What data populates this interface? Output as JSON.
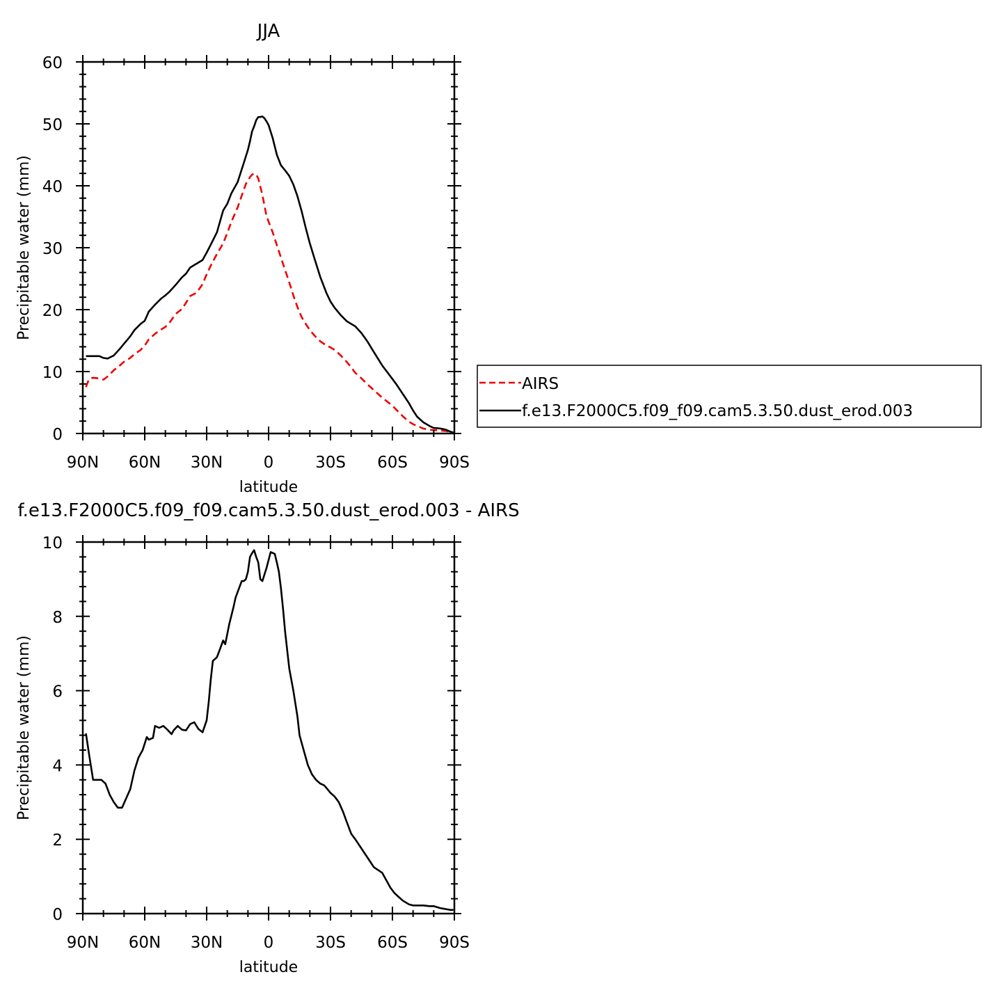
{
  "colors": {
    "airs": "#ee0000",
    "model": "#000000",
    "axes": "#000000",
    "background": "#ffffff"
  },
  "chart_data": [
    {
      "type": "line",
      "title": "JJA",
      "xlabel": "latitude",
      "ylabel": "Precipitable water (mm)",
      "xlim": [
        90,
        -90
      ],
      "ylim": [
        0,
        60
      ],
      "xticks": [
        {
          "value": 90,
          "label": "90N"
        },
        {
          "value": 60,
          "label": "60N"
        },
        {
          "value": 30,
          "label": "30N"
        },
        {
          "value": 0,
          "label": "0"
        },
        {
          "value": -30,
          "label": "30S"
        },
        {
          "value": -60,
          "label": "60S"
        },
        {
          "value": -90,
          "label": "90S"
        }
      ],
      "yticks": [
        {
          "value": 0,
          "label": "0"
        },
        {
          "value": 10,
          "label": "10"
        },
        {
          "value": 20,
          "label": "20"
        },
        {
          "value": 30,
          "label": "30"
        },
        {
          "value": 40,
          "label": "40"
        },
        {
          "value": 50,
          "label": "50"
        },
        {
          "value": 60,
          "label": "60"
        }
      ],
      "legend": {
        "position": "right",
        "entries": [
          {
            "label": "AIRS",
            "style": "dashed",
            "color": "#ee0000"
          },
          {
            "label": "f.e13.F2000C5.f09_f09.cam5.3.50.dust_erod.003",
            "style": "solid",
            "color": "#000000"
          }
        ]
      },
      "series": [
        {
          "name": "AIRS",
          "style": "dashed",
          "color": "#ee0000",
          "x": [
            88.5,
            87,
            85,
            82,
            80,
            78,
            75,
            72,
            70,
            67,
            65,
            62,
            60,
            58,
            55,
            52,
            50,
            48,
            45,
            42,
            40,
            38,
            35,
            32,
            30,
            28,
            25,
            22,
            20,
            18,
            15,
            13,
            11,
            9,
            8,
            7,
            6,
            5,
            4,
            3,
            2,
            1,
            0,
            -2,
            -4,
            -6,
            -8,
            -10,
            -12,
            -14,
            -16,
            -18,
            -20,
            -22,
            -25,
            -28,
            -30,
            -32,
            -35,
            -38,
            -40,
            -42,
            -45,
            -48,
            -50,
            -55,
            -60,
            -62,
            -65,
            -68,
            -70,
            -72,
            -75,
            -78,
            -80,
            -82,
            -84,
            -86,
            -88,
            -89.5
          ],
          "y": [
            7.5,
            8.8,
            9.0,
            8.9,
            8.7,
            9.2,
            10.2,
            11.0,
            11.6,
            12.2,
            12.8,
            13.5,
            14.2,
            15.2,
            16.1,
            16.8,
            17.2,
            17.9,
            19.3,
            20.1,
            21.1,
            22.2,
            22.7,
            24.1,
            25.7,
            27.1,
            29.0,
            30.7,
            32.4,
            34.2,
            36.5,
            38.4,
            40.3,
            41.4,
            41.8,
            42.0,
            41.8,
            41.2,
            39.9,
            38.5,
            36.8,
            35.1,
            34.2,
            32.5,
            30.4,
            28.4,
            26.4,
            24.4,
            22.3,
            20.4,
            18.8,
            17.7,
            16.7,
            15.9,
            14.9,
            14.2,
            13.9,
            13.5,
            12.6,
            11.5,
            10.7,
            9.8,
            8.9,
            7.9,
            7.3,
            5.8,
            4.5,
            3.8,
            2.8,
            1.9,
            1.5,
            1.2,
            0.8,
            0.6,
            0.55,
            0.5,
            0.45,
            0.4,
            0.2,
            0.1
          ]
        },
        {
          "name": "f.e13.F2000C5.f09_f09.cam5.3.50.dust_erod.003",
          "style": "solid",
          "color": "#000000",
          "x": [
            88.5,
            85,
            82,
            80,
            78,
            75,
            72,
            70,
            67,
            65,
            62,
            60,
            58,
            55,
            52,
            50,
            48,
            45,
            42,
            40,
            38,
            35,
            32,
            30,
            28,
            25,
            22,
            20,
            18,
            15,
            12,
            10,
            9,
            8,
            7,
            6,
            5,
            4,
            3,
            2,
            1,
            0,
            -2,
            -4,
            -6,
            -8,
            -10,
            -12,
            -14,
            -16,
            -18,
            -20,
            -22,
            -25,
            -28,
            -30,
            -32,
            -35,
            -38,
            -40,
            -42,
            -45,
            -48,
            -50,
            -55,
            -60,
            -62,
            -65,
            -68,
            -70,
            -72,
            -75,
            -78,
            -80,
            -82,
            -84,
            -86,
            -88,
            -89.5
          ],
          "y": [
            12.5,
            12.5,
            12.5,
            12.2,
            12.1,
            12.6,
            13.7,
            14.5,
            15.7,
            16.7,
            17.7,
            18.2,
            19.7,
            20.8,
            21.8,
            22.3,
            22.9,
            24.0,
            25.2,
            25.8,
            26.8,
            27.4,
            28.0,
            29.2,
            30.5,
            32.5,
            36.0,
            37.1,
            38.8,
            40.6,
            43.7,
            45.8,
            47.2,
            48.8,
            49.6,
            50.6,
            51.1,
            51.1,
            51.2,
            50.9,
            50.4,
            49.8,
            47.7,
            45.0,
            43.3,
            42.5,
            41.6,
            40.2,
            38.3,
            35.9,
            33.2,
            30.7,
            28.5,
            25.3,
            22.7,
            21.3,
            20.3,
            19.1,
            18.1,
            17.7,
            17.3,
            16.2,
            14.8,
            13.7,
            11.0,
            8.8,
            7.9,
            6.4,
            4.9,
            3.7,
            2.7,
            1.8,
            1.2,
            0.9,
            0.85,
            0.75,
            0.6,
            0.3,
            0.15
          ]
        }
      ]
    },
    {
      "type": "line",
      "title": "f.e13.F2000C5.f09_f09.cam5.3.50.dust_erod.003 - AIRS",
      "xlabel": "latitude",
      "ylabel": "Precipitable water (mm)",
      "xlim": [
        90,
        -90
      ],
      "ylim": [
        0,
        10
      ],
      "xticks": [
        {
          "value": 90,
          "label": "90N"
        },
        {
          "value": 60,
          "label": "60N"
        },
        {
          "value": 30,
          "label": "30N"
        },
        {
          "value": 0,
          "label": "0"
        },
        {
          "value": -30,
          "label": "30S"
        },
        {
          "value": -60,
          "label": "60S"
        },
        {
          "value": -90,
          "label": "90S"
        }
      ],
      "yticks": [
        {
          "value": 0,
          "label": "0"
        },
        {
          "value": 2,
          "label": "2"
        },
        {
          "value": 4,
          "label": "4"
        },
        {
          "value": 6,
          "label": "6"
        },
        {
          "value": 8,
          "label": "8"
        },
        {
          "value": 10,
          "label": "10"
        }
      ],
      "series": [
        {
          "style": "solid",
          "color": "#000000",
          "x": [
            88.5,
            87,
            85,
            83,
            81,
            79,
            77,
            75,
            73,
            71,
            69,
            67,
            65,
            63,
            61,
            59,
            58,
            56,
            55,
            53,
            51,
            49,
            47,
            46,
            44,
            42,
            40,
            38,
            36,
            34,
            32,
            30,
            29,
            28,
            27,
            26,
            25,
            24,
            22,
            21,
            19,
            17,
            16,
            13,
            12,
            11,
            10,
            9,
            8,
            7,
            6,
            5,
            4,
            3,
            1,
            -1,
            -3,
            -4,
            -5,
            -6,
            -7,
            -8,
            -10,
            -12,
            -14,
            -15,
            -17,
            -19,
            -21,
            -23,
            -25,
            -27,
            -30,
            -32,
            -34,
            -36,
            -38,
            -40,
            -42,
            -45,
            -48,
            -51,
            -55,
            -57,
            -59,
            -61,
            -63,
            -65,
            -68,
            -70,
            -72,
            -75,
            -78,
            -80,
            -83,
            -86,
            -88,
            -89.5
          ],
          "y": [
            4.85,
            4.3,
            3.6,
            3.6,
            3.6,
            3.5,
            3.2,
            3.0,
            2.85,
            2.85,
            3.1,
            3.35,
            3.85,
            4.2,
            4.4,
            4.75,
            4.68,
            4.73,
            5.05,
            5.0,
            5.05,
            4.95,
            4.83,
            4.93,
            5.05,
            4.95,
            4.93,
            5.1,
            5.15,
            4.97,
            4.88,
            5.2,
            5.7,
            6.3,
            6.8,
            6.85,
            6.9,
            7.05,
            7.35,
            7.25,
            7.8,
            8.25,
            8.5,
            8.95,
            8.95,
            9.0,
            9.2,
            9.6,
            9.7,
            9.78,
            9.6,
            9.45,
            9.0,
            8.95,
            9.3,
            9.73,
            9.68,
            9.45,
            9.2,
            8.75,
            8.2,
            7.6,
            6.6,
            6.0,
            5.3,
            4.8,
            4.4,
            4.0,
            3.75,
            3.6,
            3.5,
            3.45,
            3.25,
            3.15,
            3.0,
            2.75,
            2.45,
            2.15,
            2.0,
            1.75,
            1.5,
            1.25,
            1.1,
            0.9,
            0.7,
            0.55,
            0.45,
            0.35,
            0.25,
            0.22,
            0.22,
            0.22,
            0.2,
            0.2,
            0.15,
            0.12,
            0.1,
            0.1
          ]
        }
      ]
    }
  ]
}
